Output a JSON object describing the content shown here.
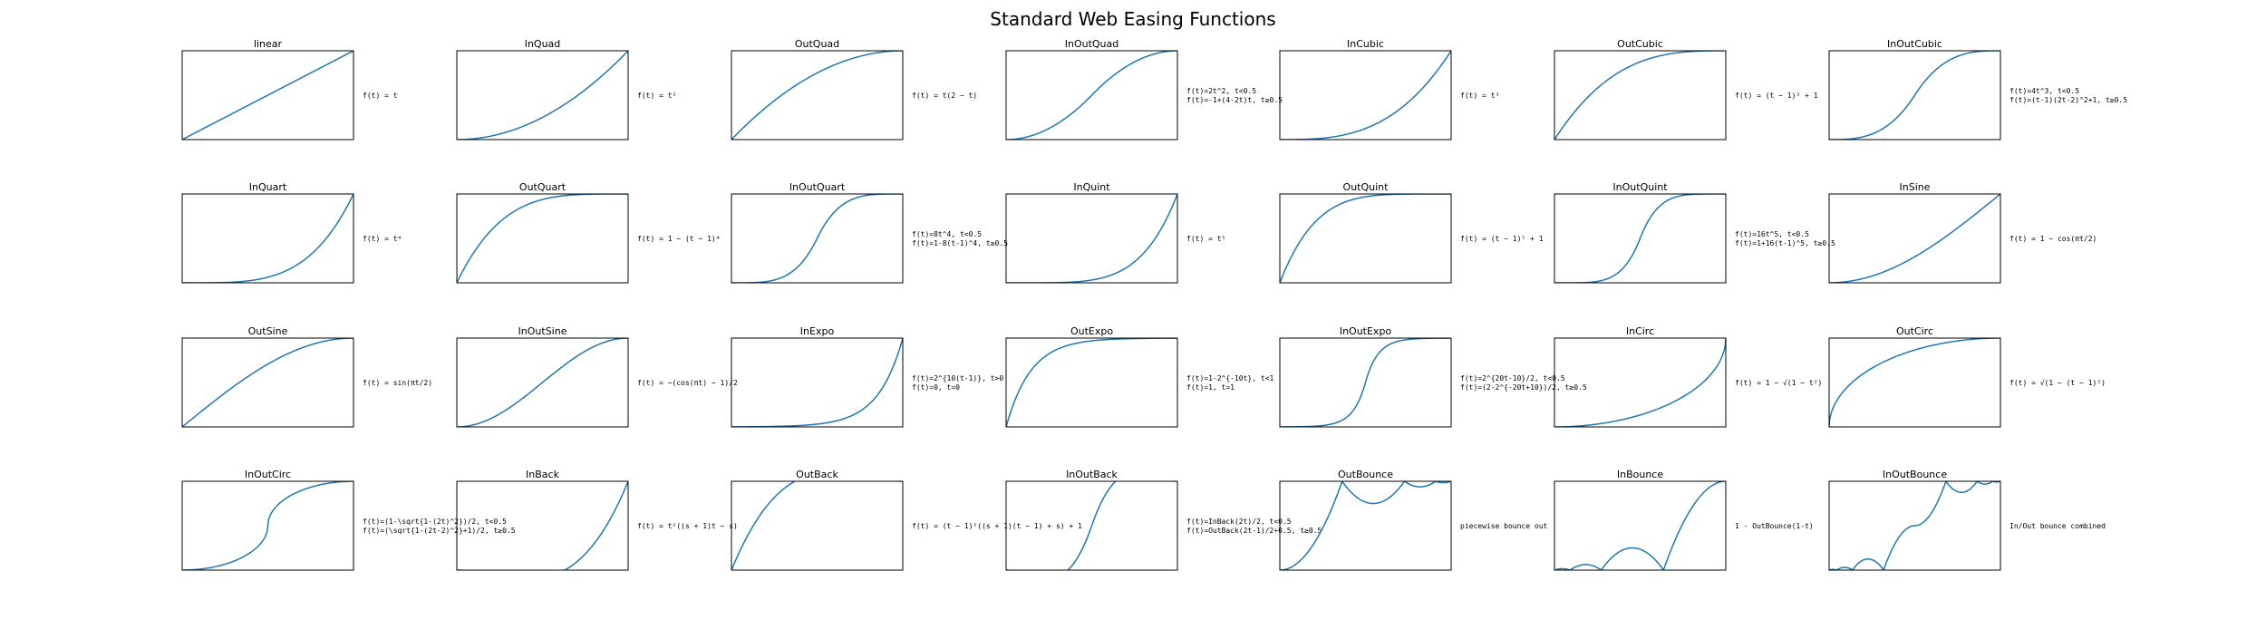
{
  "chart_data": {
    "type": "line",
    "title": "Standard Web Easing Functions",
    "colors": {
      "line": "#1f77b4",
      "frame": "#000000"
    },
    "x_range": [
      0,
      1
    ],
    "y_range": [
      0,
      1
    ],
    "grid": false,
    "panels": [
      {
        "name": "linear",
        "fn": "linear",
        "formula": [
          "f(t) = t"
        ]
      },
      {
        "name": "InQuad",
        "fn": "inQuad",
        "formula": [
          "f(t) = t²"
        ]
      },
      {
        "name": "OutQuad",
        "fn": "outQuad",
        "formula": [
          "f(t) = t(2 − t)"
        ]
      },
      {
        "name": "InOutQuad",
        "fn": "inOutQuad",
        "formula": [
          "f(t)=2t^2, t<0.5",
          "f(t)=-1+(4-2t)t, t≥0.5"
        ]
      },
      {
        "name": "InCubic",
        "fn": "inCubic",
        "formula": [
          "f(t) = t³"
        ]
      },
      {
        "name": "OutCubic",
        "fn": "outCubic",
        "formula": [
          "f(t) = (t − 1)³ + 1"
        ]
      },
      {
        "name": "InOutCubic",
        "fn": "inOutCubic",
        "formula": [
          "f(t)=4t^3, t<0.5",
          "f(t)=(t-1)(2t-2)^2+1, t≥0.5"
        ]
      },
      {
        "name": "InQuart",
        "fn": "inQuart",
        "formula": [
          "f(t) = t⁴"
        ]
      },
      {
        "name": "OutQuart",
        "fn": "outQuart",
        "formula": [
          "f(t) = 1 − (t − 1)⁴"
        ]
      },
      {
        "name": "InOutQuart",
        "fn": "inOutQuart",
        "formula": [
          "f(t)=8t^4, t<0.5",
          "f(t)=1-8(t-1)^4, t≥0.5"
        ]
      },
      {
        "name": "InQuint",
        "fn": "inQuint",
        "formula": [
          "f(t) = t⁵"
        ]
      },
      {
        "name": "OutQuint",
        "fn": "outQuint",
        "formula": [
          "f(t) = (t − 1)⁵ + 1"
        ]
      },
      {
        "name": "InOutQuint",
        "fn": "inOutQuint",
        "formula": [
          "f(t)=16t^5, t<0.5",
          "f(t)=1+16(t-1)^5, t≥0.5"
        ]
      },
      {
        "name": "InSine",
        "fn": "inSine",
        "formula": [
          "f(t) = 1 − cos(πt/2)"
        ]
      },
      {
        "name": "OutSine",
        "fn": "outSine",
        "formula": [
          "f(t) = sin(πt/2)"
        ]
      },
      {
        "name": "InOutSine",
        "fn": "inOutSine",
        "formula": [
          "f(t) = −(cos(πt) − 1)/2"
        ]
      },
      {
        "name": "InExpo",
        "fn": "inExpo",
        "formula": [
          "f(t)=2^{10(t-1)}, t>0",
          "f(t)=0, t=0"
        ]
      },
      {
        "name": "OutExpo",
        "fn": "outExpo",
        "formula": [
          "f(t)=1-2^{-10t}, t<1",
          "f(t)=1, t=1"
        ]
      },
      {
        "name": "InOutExpo",
        "fn": "inOutExpo",
        "formula": [
          "f(t)=2^{20t-10}/2, t<0.5",
          "f(t)=(2-2^{-20t+10})/2, t≥0.5"
        ]
      },
      {
        "name": "InCirc",
        "fn": "inCirc",
        "formula": [
          "f(t) = 1 − √(1 − t²)"
        ]
      },
      {
        "name": "OutCirc",
        "fn": "outCirc",
        "formula": [
          "f(t) = √(1 − (t − 1)²)"
        ]
      },
      {
        "name": "InOutCirc",
        "fn": "inOutCirc",
        "formula": [
          "f(t)=(1-\\sqrt{1-(2t)^2})/2, t<0.5",
          "f(t)=(\\sqrt{1-(2t-2)^2}+1)/2, t≥0.5"
        ]
      },
      {
        "name": "InBack",
        "fn": "inBack",
        "formula": [
          "f(t) = t²((s + 1)t − s)"
        ]
      },
      {
        "name": "OutBack",
        "fn": "outBack",
        "formula": [
          "f(t) = (t − 1)²((s + 1)(t − 1) + s) + 1"
        ]
      },
      {
        "name": "InOutBack",
        "fn": "inOutBack",
        "formula": [
          "f(t)=InBack(2t)/2, t<0.5",
          "f(t)=OutBack(2t-1)/2+0.5, t≥0.5"
        ]
      },
      {
        "name": "OutBounce",
        "fn": "outBounce",
        "formula": [
          "piecewise bounce out"
        ]
      },
      {
        "name": "InBounce",
        "fn": "inBounce",
        "formula": [
          "1 - OutBounce(1-t)"
        ]
      },
      {
        "name": "InOutBounce",
        "fn": "inOutBounce",
        "formula": [
          "In/Out bounce combined"
        ]
      }
    ]
  }
}
